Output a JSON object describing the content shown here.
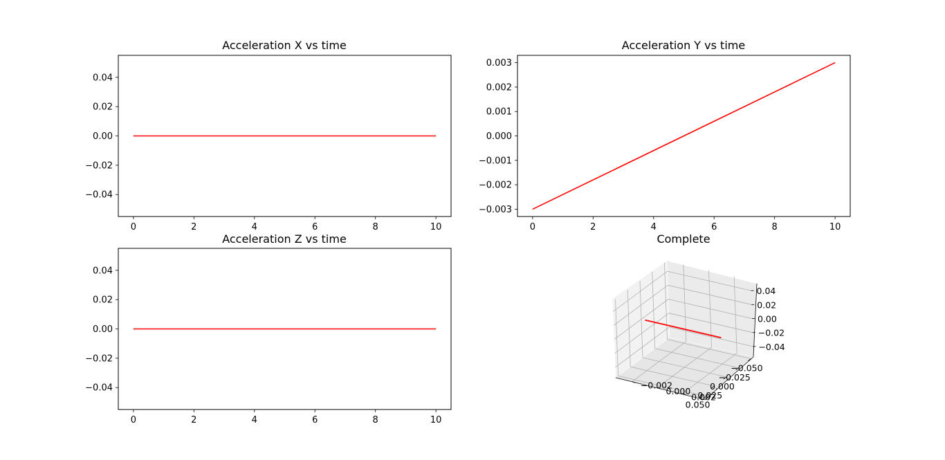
{
  "chart_data": [
    {
      "type": "line",
      "title": "Acceleration X vs time",
      "xlabel": "",
      "ylabel": "",
      "xlim": [
        -0.5,
        10.5
      ],
      "ylim": [
        -0.055,
        0.055
      ],
      "xticks": [
        "0",
        "2",
        "4",
        "6",
        "8",
        "10"
      ],
      "yticks": [
        "0.04",
        "0.02",
        "0.00",
        "−0.02",
        "−0.04"
      ],
      "grid": false,
      "series": [
        {
          "x": [
            0,
            10
          ],
          "y": [
            0,
            0
          ],
          "color": "#ff0000"
        }
      ]
    },
    {
      "type": "line",
      "title": "Acceleration Y vs time",
      "xlabel": "",
      "ylabel": "",
      "xlim": [
        -0.5,
        10.5
      ],
      "ylim": [
        -0.0033,
        0.0033
      ],
      "xticks": [
        "0",
        "2",
        "4",
        "6",
        "8",
        "10"
      ],
      "yticks": [
        "0.003",
        "0.002",
        "0.001",
        "0.000",
        "−0.001",
        "−0.002",
        "−0.003"
      ],
      "grid": false,
      "series": [
        {
          "x": [
            0,
            10
          ],
          "y": [
            -0.003,
            0.003
          ],
          "color": "#ff0000"
        }
      ]
    },
    {
      "type": "line",
      "title": "Acceleration Z vs time",
      "xlabel": "",
      "ylabel": "",
      "xlim": [
        -0.5,
        10.5
      ],
      "ylim": [
        -0.055,
        0.055
      ],
      "xticks": [
        "0",
        "2",
        "4",
        "6",
        "8",
        "10"
      ],
      "yticks": [
        "0.04",
        "0.02",
        "0.00",
        "−0.02",
        "−0.04"
      ],
      "grid": false,
      "series": [
        {
          "x": [
            0,
            10
          ],
          "y": [
            0,
            0
          ],
          "color": "#ff0000"
        }
      ]
    },
    {
      "type": "line3d",
      "title": "Complete",
      "xticks": [
        "−0.050",
        "−0.025",
        "0.000",
        "0.025",
        "0.050"
      ],
      "yticks": [
        "−0.002",
        "0.000",
        "0.002"
      ],
      "zticks": [
        "0.04",
        "0.02",
        "0.00",
        "−0.02",
        "−0.04"
      ],
      "grid": true,
      "series": [
        {
          "x": [
            0,
            0
          ],
          "y": [
            -0.003,
            0.003
          ],
          "z": [
            0,
            0
          ],
          "color": "#ff0000"
        }
      ]
    }
  ]
}
